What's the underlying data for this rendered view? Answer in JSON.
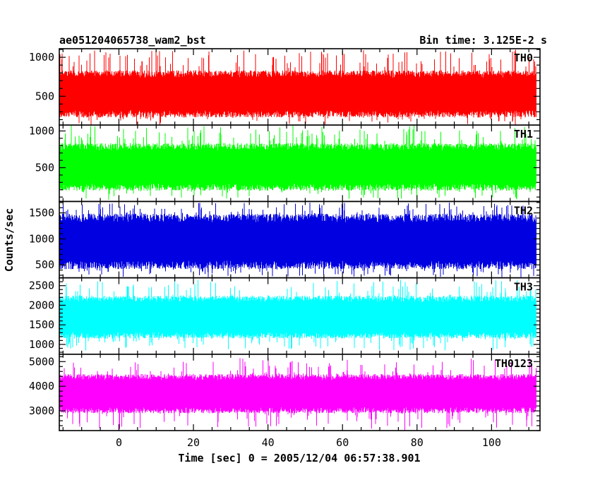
{
  "header": {
    "left_title": "ae051204065738_wam2_bst",
    "right_title": "Bin time: 3.125E-2 s"
  },
  "chart_data": {
    "type": "line",
    "xlabel": "Time [sec] 0 = 2005/12/04 06:57:38.901",
    "ylabel": "Counts/sec",
    "xlim": [
      -16,
      113
    ],
    "x_range": [
      -16,
      112
    ],
    "x_ticks": [
      0,
      20,
      40,
      60,
      80,
      100
    ],
    "x_tick_labels": [
      "0",
      "20",
      "40",
      "60",
      "80",
      "100"
    ],
    "grid": false,
    "panels": [
      {
        "name": "TH0",
        "color": "#ff0000",
        "ylim": [
          130,
          1110
        ],
        "yticks": [
          500,
          1000
        ],
        "ytick_labels": [
          "500",
          "1000"
        ],
        "mean": 530,
        "band_low": 310,
        "band_high": 860,
        "min": 130,
        "max": 1100
      },
      {
        "name": "TH1",
        "color": "#00ff00",
        "ylim": [
          40,
          1080
        ],
        "yticks": [
          500,
          1000
        ],
        "ytick_labels": [
          "500",
          "1000"
        ],
        "mean": 510,
        "band_low": 270,
        "band_high": 860,
        "min": 60,
        "max": 1080
      },
      {
        "name": "TH2",
        "color": "#0000e0",
        "ylim": [
          250,
          1720
        ],
        "yticks": [
          500,
          1000,
          1500
        ],
        "ytick_labels": [
          "500",
          "1000",
          "1500"
        ],
        "mean": 950,
        "band_low": 480,
        "band_high": 1450,
        "min": 260,
        "max": 1700
      },
      {
        "name": "TH3",
        "color": "#00ffff",
        "ylim": [
          750,
          2700
        ],
        "yticks": [
          1000,
          1500,
          2000,
          2500
        ],
        "ytick_labels": [
          "1000",
          "1500",
          "2000",
          "2500"
        ],
        "mean": 1700,
        "band_low": 1250,
        "band_high": 2250,
        "min": 850,
        "max": 2650
      },
      {
        "name": "TH0123",
        "color": "#ff00ff",
        "ylim": [
          2200,
          5300
        ],
        "yticks": [
          3000,
          4000,
          5000
        ],
        "ytick_labels": [
          "3000",
          "4000",
          "5000"
        ],
        "mean": 3700,
        "band_low": 3050,
        "band_high": 4500,
        "min": 2200,
        "max": 5150
      }
    ]
  }
}
